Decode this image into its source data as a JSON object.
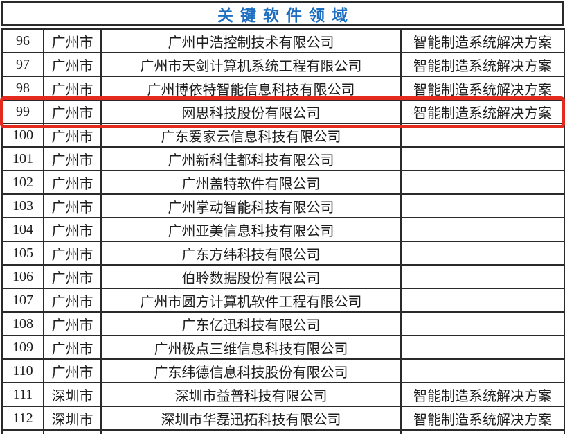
{
  "header": {
    "title": "关键软件领域"
  },
  "colors": {
    "title_blue": "#1d6fc1",
    "highlight_red": "#e42a1d",
    "border_dark": "#2a2a2a"
  },
  "highlight": {
    "row_no": "99"
  },
  "table": {
    "rows": [
      {
        "no": "96",
        "city": "广州市",
        "company": "广州中浩控制技术有限公司",
        "solution": "智能制造系统解决方案"
      },
      {
        "no": "97",
        "city": "广州市",
        "company": "广州市天剑计算机系统工程有限公司",
        "solution": "智能制造系统解决方案"
      },
      {
        "no": "98",
        "city": "广州市",
        "company": "广州博依特智能信息科技有限公司",
        "solution": "智能制造系统解决方案"
      },
      {
        "no": "99",
        "city": "广州市",
        "company": "网思科技股份有限公司",
        "solution": "智能制造系统解决方案"
      },
      {
        "no": "100",
        "city": "广州市",
        "company": "广东爱家云信息科技有限公司",
        "solution": ""
      },
      {
        "no": "101",
        "city": "广州市",
        "company": "广州新科佳都科技有限公司",
        "solution": ""
      },
      {
        "no": "102",
        "city": "广州市",
        "company": "广州盖特软件有限公司",
        "solution": ""
      },
      {
        "no": "103",
        "city": "广州市",
        "company": "广州掌动智能科技有限公司",
        "solution": ""
      },
      {
        "no": "104",
        "city": "广州市",
        "company": "广州亚美信息科技有限公司",
        "solution": ""
      },
      {
        "no": "105",
        "city": "广州市",
        "company": "广东方纬科技有限公司",
        "solution": ""
      },
      {
        "no": "106",
        "city": "广州市",
        "company": "伯聆数据股份有限公司",
        "solution": ""
      },
      {
        "no": "107",
        "city": "广州市",
        "company": "广州市圆方计算机软件工程有限公司",
        "solution": ""
      },
      {
        "no": "108",
        "city": "广州市",
        "company": "广东亿迅科技有限公司",
        "solution": ""
      },
      {
        "no": "109",
        "city": "广州市",
        "company": "广州极点三维信息科技有限公司",
        "solution": ""
      },
      {
        "no": "110",
        "city": "广州市",
        "company": "广东纬德信息科技股份有限公司",
        "solution": ""
      },
      {
        "no": "111",
        "city": "深圳市",
        "company": "深圳市益普科技有限公司",
        "solution": "智能制造系统解决方案"
      },
      {
        "no": "112",
        "city": "深圳市",
        "company": "深圳市华磊迅拓科技有限公司",
        "solution": "智能制造系统解决方案"
      }
    ]
  }
}
